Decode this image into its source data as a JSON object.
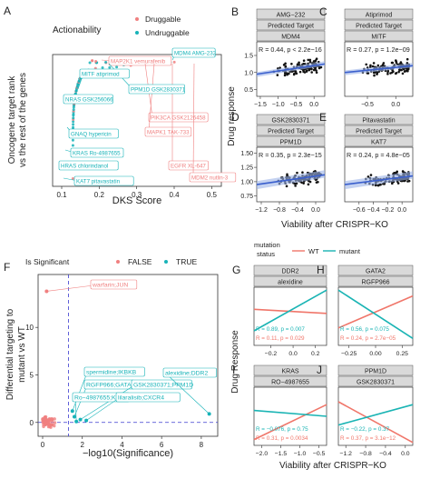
{
  "panels": {
    "A": "A",
    "B": "B",
    "C": "C",
    "D": "D",
    "E": "E",
    "F": "F",
    "G": "G",
    "H": "H",
    "I": "I",
    "J": "J"
  },
  "colors": {
    "druggable": "#f08080",
    "undruggable": "#17b3b8",
    "fit": "#3a5fcd",
    "grey": "#d9d9d9",
    "strip": "#d9d9d9",
    "red_line": "#f0766a",
    "teal_line": "#1ab4b4"
  },
  "chart_data": [
    {
      "id": "A",
      "type": "scatter",
      "legend_title": "Actionability",
      "legend": [
        "Druggable",
        "Undruggable"
      ],
      "xlabel": "DKS Score",
      "ylabel": [
        "Oncogene target rank",
        "vs the rest of the genes"
      ],
      "xticks": [
        "0.1",
        "0.2",
        "0.3",
        "0.4",
        "0.5"
      ],
      "labels": {
        "druggable": [
          "MAP2K1 vemurafenib",
          "PIK3CA GSK2126458",
          "MAPK1 TAK-733",
          "EGFR XL-647",
          "MDM2 nutlin-3"
        ],
        "undruggable": [
          "MDM4 AMG-232",
          "PPM1D GSK2830371",
          "MITF atiprimod",
          "NRAS GSK256066",
          "GNAQ hypericin",
          "KRAS Ro-4987655",
          "HRAS chlorindanol",
          "KAT7 pitavastatin"
        ]
      }
    },
    {
      "id": "B-E",
      "type": "scatter",
      "xlabel": "Viability after CRISPR−KO",
      "ylabel": "Drug response",
      "subplots": [
        {
          "drug": "AMG−232",
          "strip2": "Predicted Target",
          "gene": "MDM4",
          "stat": "R = 0.44, p < 2.2e−16",
          "xticks": [
            "−1.5",
            "−1.0",
            "−0.5",
            "0.0"
          ],
          "yticks": [
            "0.5",
            "1.0",
            "1.5"
          ]
        },
        {
          "drug": "Atiprimod",
          "strip2": "Predicted Target",
          "gene": "MITF",
          "stat": "R = 0.27, p = 1.2e−09",
          "xticks": [
            "−0.5",
            "0.0"
          ],
          "yticks": []
        },
        {
          "drug": "GSK2830371",
          "strip2": "Predicted Target",
          "gene": "PPM1D",
          "stat": "R = 0.35, p = 2.3e−15",
          "xticks": [
            "−1.2",
            "−0.8",
            "−0.4",
            "0.0"
          ],
          "yticks": [
            "0.75",
            "1.00",
            "1.25",
            "1.50"
          ]
        },
        {
          "drug": "Pitavastatin",
          "strip2": "Predicted Target",
          "gene": "KAT7",
          "stat": "R = 0.24, p = 4.8e−05",
          "xticks": [
            "−0.6",
            "−0.4",
            "−0.2",
            "0.0"
          ],
          "yticks": []
        }
      ]
    },
    {
      "id": "F",
      "type": "scatter",
      "legend_title": "Is Significant",
      "legend": [
        "FALSE",
        "TRUE"
      ],
      "xlabel": "−log10(Significance)",
      "ylabel": [
        "Differential targeting to",
        "mutant vs WT"
      ],
      "xticks": [
        "0",
        "2",
        "4",
        "6",
        "8"
      ],
      "yticks": [
        "0",
        "5",
        "10"
      ],
      "labels": [
        "warfarin;JUN",
        "spermidine;IKBKB",
        "RGFP966;GATA2",
        "GSK2830371;PPM1D",
        "alexidine;DDR2",
        "Ro−4987655;KRAS",
        "lilaralisib;CXCR4"
      ]
    },
    {
      "id": "G-J",
      "type": "line",
      "legend_title": [
        "mutation",
        "status"
      ],
      "legend": [
        "WT",
        "mutant"
      ],
      "xlabel": "Viability after CRISPR−KO",
      "ylabel": "Drug Response",
      "subplots": [
        {
          "gene": "DDR2",
          "drug": "alexidine",
          "stat_wt": "R = 0.11, p = 0.029",
          "stat_mut": "R = 0.89, p = 0.007",
          "xticks": [
            "−0.2",
            "0.0",
            "0.2"
          ]
        },
        {
          "gene": "GATA2",
          "drug": "RGFP966",
          "stat_wt": "R = 0.24, p = 2.7e−05",
          "stat_mut": "R = 0.56, p = 0.075",
          "xticks": [
            "−0.25",
            "0.00",
            "0.25"
          ]
        },
        {
          "gene": "KRAS",
          "drug": "RO−4987655",
          "stat_wt": "R = 0.31, p = 0.0034",
          "stat_mut": "R = −0.076, p = 0.75",
          "xticks": [
            "−2.0",
            "−1.5",
            "−1.0",
            "−0.5"
          ]
        },
        {
          "gene": "PPM1D",
          "drug": "GSK2830371",
          "stat_wt": "R = 0.37, p = 3.1e−12",
          "stat_mut": "R = −0.22, p = 0.37",
          "xticks": [
            "−1.2",
            "−0.8",
            "−0.4",
            "0.0"
          ]
        }
      ]
    }
  ]
}
